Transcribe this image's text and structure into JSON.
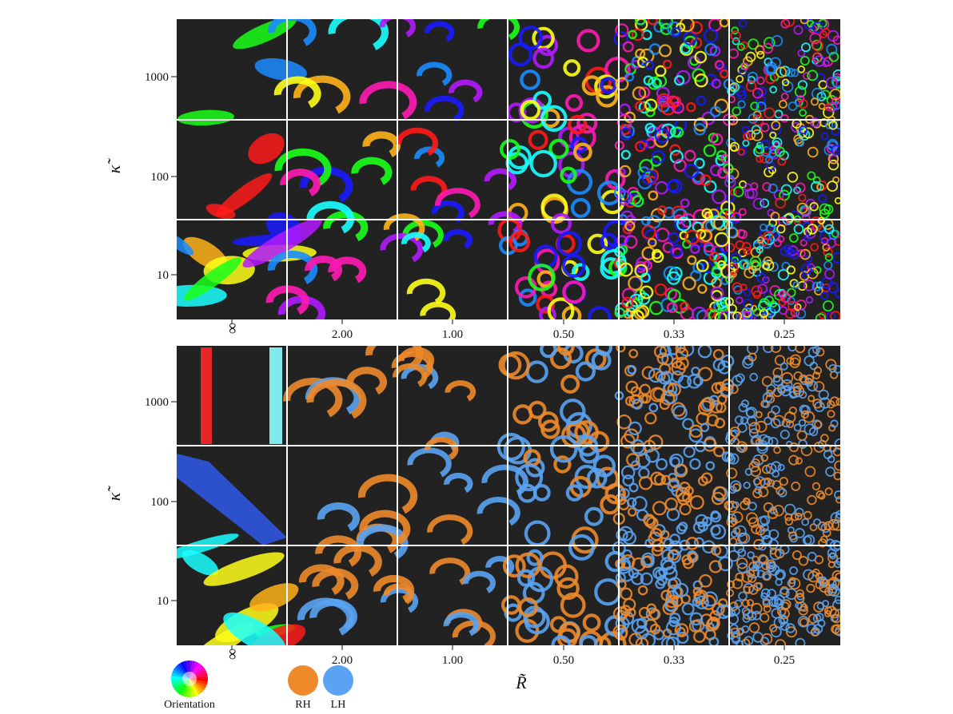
{
  "figure": {
    "panels": [
      {
        "id": "orientation",
        "y_axis": {
          "title": "κ̃",
          "rows": [
            "1000",
            "100",
            "10"
          ]
        },
        "x_axis": {
          "columns": [
            "∞",
            "2.00",
            "1.00",
            "0.50",
            "0.33",
            "0.25"
          ]
        },
        "coloring": "orientation"
      },
      {
        "id": "handedness",
        "y_axis": {
          "title": "κ̃",
          "rows": [
            "1000",
            "100",
            "10"
          ]
        },
        "x_axis": {
          "columns": [
            "∞",
            "2.00",
            "1.00",
            "0.50",
            "0.33",
            "0.25"
          ]
        },
        "coloring": "handedness"
      }
    ],
    "x_axis_title": "R̃",
    "legend": {
      "orientation_label": "Orientation",
      "rh_label": "RH",
      "lh_label": "LH"
    },
    "colors": {
      "background": "#222222",
      "rh": "#ee8a2a",
      "lh": "#5aa3f2",
      "grid_separator": "#ffffff"
    }
  }
}
